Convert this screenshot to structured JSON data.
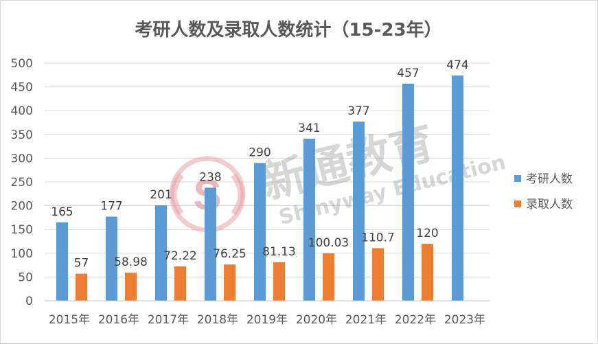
{
  "chart_data": {
    "type": "bar",
    "title": "考研人数及录取人数统计（15-23年）",
    "categories": [
      "2015年",
      "2016年",
      "2017年",
      "2018年",
      "2019年",
      "2020年",
      "2021年",
      "2022年",
      "2023年"
    ],
    "series": [
      {
        "name": "考研人数",
        "color": "#5b9bd5",
        "values": [
          165,
          177,
          201,
          238,
          290,
          341,
          377,
          457,
          474
        ],
        "labels": [
          "165",
          "177",
          "201",
          "238",
          "290",
          "341",
          "377",
          "457",
          "474"
        ]
      },
      {
        "name": "录取人数",
        "color": "#ed7d31",
        "values": [
          57,
          58.98,
          72.22,
          76.25,
          81.13,
          100.03,
          110.7,
          120,
          null
        ],
        "labels": [
          "57",
          "58.98",
          "72.22",
          "76.25",
          "81.13",
          "100.03",
          "110.7",
          "120",
          ""
        ]
      }
    ],
    "yticks": [
      "0",
      "50",
      "100",
      "150",
      "200",
      "250",
      "300",
      "350",
      "400",
      "450",
      "500"
    ],
    "ylim": [
      0,
      500
    ],
    "grid": true,
    "legend_position": "right",
    "xlabel": "",
    "ylabel": ""
  },
  "watermark": {
    "brand": "新通教育",
    "brand_en": "Shinyway Education",
    "logo_letter": "S"
  }
}
